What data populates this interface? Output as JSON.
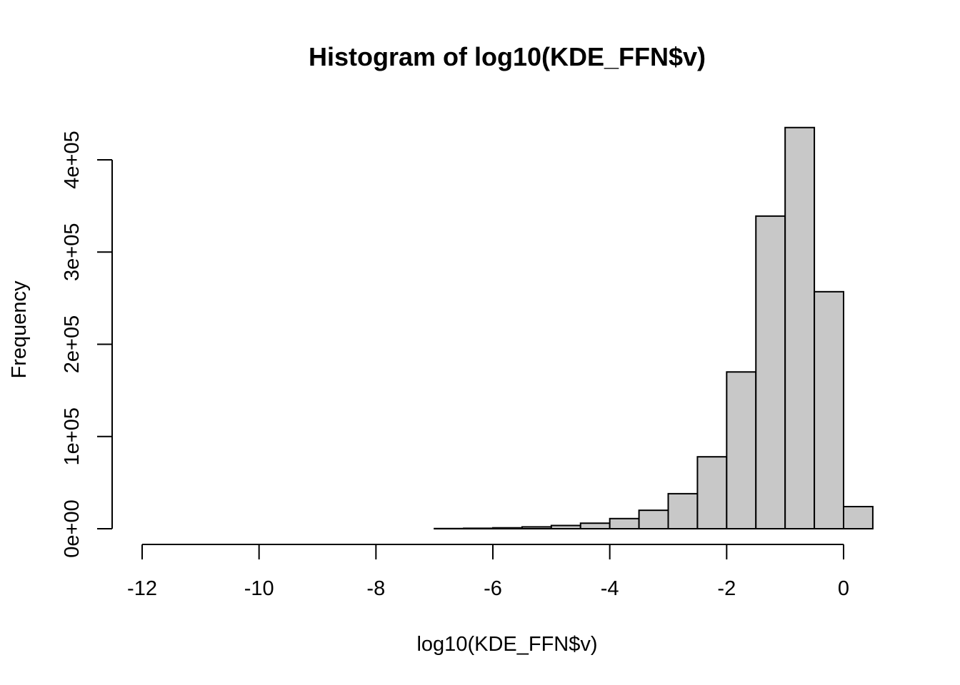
{
  "chart_data": {
    "type": "bar",
    "title": "Histogram of log10(KDE_FFN$v)",
    "xlabel": "log10(KDE_FFN$v)",
    "ylabel": "Frequency",
    "bin_width": 0.5,
    "bins": [
      {
        "start": -12.0,
        "end": -11.5,
        "count": 0
      },
      {
        "start": -11.5,
        "end": -11.0,
        "count": 0
      },
      {
        "start": -11.0,
        "end": -10.5,
        "count": 0
      },
      {
        "start": -10.5,
        "end": -10.0,
        "count": 0
      },
      {
        "start": -10.0,
        "end": -9.5,
        "count": 0
      },
      {
        "start": -9.5,
        "end": -9.0,
        "count": 0
      },
      {
        "start": -9.0,
        "end": -8.5,
        "count": 0
      },
      {
        "start": -8.5,
        "end": -8.0,
        "count": 0
      },
      {
        "start": -8.0,
        "end": -7.5,
        "count": 0
      },
      {
        "start": -7.5,
        "end": -7.0,
        "count": 0
      },
      {
        "start": -7.0,
        "end": -6.5,
        "count": 200
      },
      {
        "start": -6.5,
        "end": -6.0,
        "count": 500
      },
      {
        "start": -6.0,
        "end": -5.5,
        "count": 1000
      },
      {
        "start": -5.5,
        "end": -5.0,
        "count": 2000
      },
      {
        "start": -5.0,
        "end": -4.5,
        "count": 3500
      },
      {
        "start": -4.5,
        "end": -4.0,
        "count": 6000
      },
      {
        "start": -4.0,
        "end": -3.5,
        "count": 11000
      },
      {
        "start": -3.5,
        "end": -3.0,
        "count": 20000
      },
      {
        "start": -3.0,
        "end": -2.5,
        "count": 38000
      },
      {
        "start": -2.5,
        "end": -2.0,
        "count": 78000
      },
      {
        "start": -2.0,
        "end": -1.5,
        "count": 170000
      },
      {
        "start": -1.5,
        "end": -1.0,
        "count": 339000
      },
      {
        "start": -1.0,
        "end": -0.5,
        "count": 435000
      },
      {
        "start": -0.5,
        "end": 0.0,
        "count": 257000
      },
      {
        "start": 0.0,
        "end": 0.5,
        "count": 24000
      }
    ],
    "xlim": [
      -12,
      0.5
    ],
    "ylim": [
      0,
      435000
    ],
    "x_ticks": [
      -12,
      -10,
      -8,
      -6,
      -4,
      -2,
      0
    ],
    "x_tick_labels": [
      "-12",
      "-10",
      "-8",
      "-6",
      "-4",
      "-2",
      "0"
    ],
    "y_ticks": [
      0,
      100000,
      200000,
      300000,
      400000
    ],
    "y_tick_labels": [
      "0e+00",
      "1e+05",
      "2e+05",
      "3e+05",
      "4e+05"
    ],
    "grid": false,
    "bar_fill": "#c8c8c8",
    "bar_stroke": "#000000"
  }
}
